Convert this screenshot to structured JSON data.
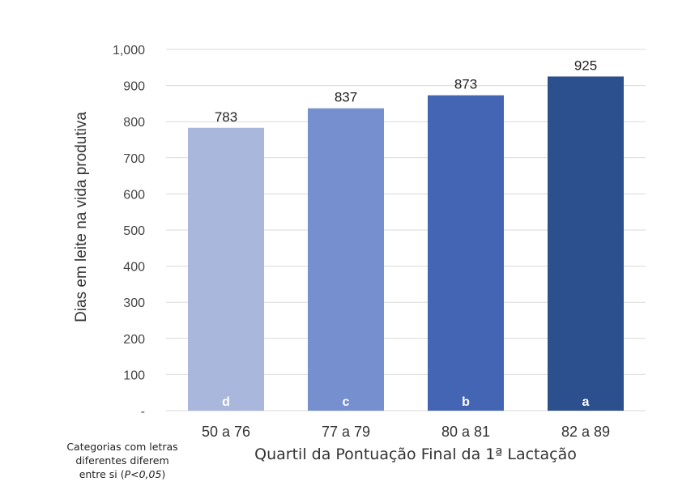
{
  "chart_data": {
    "type": "bar",
    "categories": [
      "50 a 76",
      "77 a 79",
      "80 a 81",
      "82 a 89"
    ],
    "values": [
      783,
      837,
      873,
      925
    ],
    "value_labels": [
      "783",
      "837",
      "873",
      "925"
    ],
    "significance_letters": [
      "d",
      "c",
      "b",
      "a"
    ],
    "bar_colors": [
      "#aab7dc",
      "#768fce",
      "#4365b3",
      "#2c4f8e"
    ],
    "xlabel": "Quartil da Pontuação Final da 1ª Lactação",
    "ylabel": "Dias em leite na vida produtiva",
    "ylim": [
      0,
      1000
    ],
    "yticks": [
      0,
      100,
      200,
      300,
      400,
      500,
      600,
      700,
      800,
      900,
      1000
    ],
    "ytick_labels": [
      "-",
      "100",
      "200",
      "300",
      "400",
      "500",
      "600",
      "700",
      "800",
      "900",
      "1,000"
    ],
    "grid": true,
    "legend": "none"
  },
  "footnote": {
    "line1": "Categorias com letras",
    "line2": "diferentes diferem",
    "line3_prefix": "entre si (",
    "line3_italic": "P<0,05",
    "line3_suffix": ")"
  }
}
